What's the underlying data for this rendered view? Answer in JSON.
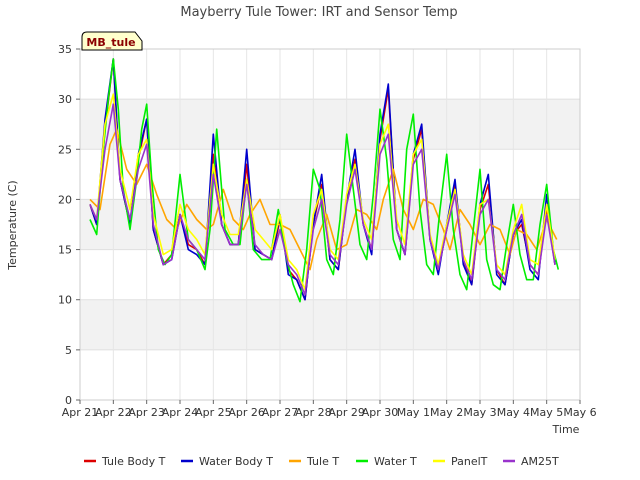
{
  "chart_data": {
    "type": "line",
    "title": "Mayberry Tule Tower: IRT and Sensor Temp",
    "station_label": "MB_tule",
    "xlabel": "Time",
    "ylabel": "Temperature (C)",
    "xlim": [
      0,
      15
    ],
    "ylim": [
      0,
      35
    ],
    "x_tick_values": [
      0,
      1,
      2,
      3,
      4,
      5,
      6,
      7,
      8,
      9,
      10,
      11,
      12,
      13,
      14,
      15
    ],
    "x_tick_labels": [
      "Apr 21",
      "Apr 22",
      "Apr 23",
      "Apr 24",
      "Apr 25",
      "Apr 26",
      "Apr 27",
      "Apr 28",
      "Apr 29",
      "Apr 30",
      "May 1",
      "May 2",
      "May 3",
      "May 4",
      "May 5",
      "May 6"
    ],
    "y_ticks": [
      0,
      5,
      10,
      15,
      20,
      25,
      30,
      35
    ],
    "grid": true,
    "x_units": "days since Apr 21",
    "series": [
      {
        "name": "Tule Body T",
        "color": "#dd0000",
        "x": [
          0.3,
          0.5,
          0.75,
          1.0,
          1.2,
          1.5,
          1.75,
          2.0,
          2.2,
          2.5,
          2.75,
          3.0,
          3.25,
          3.5,
          3.75,
          4.0,
          4.25,
          4.5,
          4.75,
          5.0,
          5.25,
          5.5,
          5.75,
          6.0,
          6.25,
          6.5,
          6.75,
          7.0,
          7.25,
          7.5,
          7.75,
          8.0,
          8.25,
          8.5,
          8.75,
          9.0,
          9.25,
          9.5,
          9.75,
          10.0,
          10.25,
          10.5,
          10.75,
          11.0,
          11.25,
          11.5,
          11.75,
          12.0,
          12.25,
          12.5,
          12.75,
          13.0,
          13.25,
          13.5,
          13.75,
          14.0,
          14.25
        ],
        "y": [
          19.5,
          17.5,
          27.0,
          34.0,
          22.0,
          17.5,
          24.0,
          28.0,
          17.0,
          13.5,
          14.5,
          18.5,
          15.5,
          15.0,
          13.5,
          24.5,
          17.5,
          15.5,
          15.5,
          23.5,
          15.0,
          14.5,
          14.0,
          18.0,
          13.0,
          12.0,
          10.0,
          17.5,
          21.5,
          14.0,
          13.0,
          20.0,
          24.0,
          17.5,
          15.0,
          26.0,
          31.0,
          17.0,
          14.5,
          24.0,
          27.0,
          16.0,
          13.0,
          17.0,
          21.5,
          14.0,
          11.5,
          19.0,
          21.5,
          13.0,
          11.5,
          16.5,
          17.5,
          13.5,
          12.5,
          19.0,
          13.5
        ]
      },
      {
        "name": "Water Body T",
        "color": "#0000cc",
        "x": [
          0.3,
          0.5,
          0.75,
          1.0,
          1.2,
          1.5,
          1.75,
          2.0,
          2.2,
          2.5,
          2.75,
          3.0,
          3.25,
          3.5,
          3.75,
          4.0,
          4.25,
          4.5,
          4.75,
          5.0,
          5.25,
          5.5,
          5.75,
          6.0,
          6.25,
          6.5,
          6.75,
          7.0,
          7.25,
          7.5,
          7.75,
          8.0,
          8.25,
          8.5,
          8.75,
          9.0,
          9.25,
          9.5,
          9.75,
          10.0,
          10.25,
          10.5,
          10.75,
          11.0,
          11.25,
          11.5,
          11.75,
          12.0,
          12.25,
          12.5,
          12.75,
          13.0,
          13.25,
          13.5,
          13.75,
          14.0,
          14.25
        ],
        "y": [
          19.5,
          17.5,
          28.0,
          34.0,
          22.0,
          17.5,
          24.5,
          28.0,
          17.0,
          13.5,
          14.0,
          18.5,
          15.0,
          14.5,
          13.5,
          26.5,
          17.5,
          15.5,
          15.5,
          25.0,
          15.0,
          14.5,
          14.0,
          18.5,
          12.5,
          12.0,
          10.0,
          17.5,
          22.5,
          14.0,
          13.0,
          20.0,
          25.0,
          17.5,
          14.5,
          26.5,
          31.5,
          17.0,
          14.5,
          24.5,
          27.5,
          16.0,
          12.5,
          17.5,
          22.0,
          13.5,
          11.5,
          19.5,
          22.5,
          12.5,
          11.5,
          16.5,
          18.0,
          13.0,
          12.0,
          20.5,
          13.5
        ]
      },
      {
        "name": "Tule T",
        "color": "#ffa500",
        "x": [
          0.3,
          0.6,
          0.9,
          1.1,
          1.4,
          1.7,
          2.0,
          2.3,
          2.6,
          2.9,
          3.2,
          3.5,
          3.8,
          4.0,
          4.3,
          4.6,
          4.9,
          5.1,
          5.4,
          5.7,
          6.0,
          6.3,
          6.6,
          6.9,
          7.1,
          7.4,
          7.7,
          8.0,
          8.3,
          8.6,
          8.9,
          9.1,
          9.4,
          9.7,
          10.0,
          10.3,
          10.6,
          10.9,
          11.1,
          11.4,
          11.7,
          12.0,
          12.3,
          12.6,
          12.9,
          13.1,
          13.4,
          13.7,
          14.0,
          14.3
        ],
        "y": [
          20.0,
          19.0,
          25.5,
          27.0,
          23.0,
          21.5,
          23.5,
          20.5,
          18.0,
          17.0,
          19.5,
          18.0,
          17.0,
          17.5,
          21.0,
          18.0,
          17.0,
          18.5,
          20.0,
          17.5,
          17.5,
          17.0,
          15.0,
          13.0,
          16.0,
          18.5,
          15.0,
          15.5,
          19.0,
          18.5,
          17.0,
          20.0,
          23.0,
          19.0,
          17.0,
          20.0,
          19.5,
          17.0,
          15.0,
          19.0,
          17.5,
          15.5,
          17.5,
          17.0,
          14.5,
          17.0,
          16.5,
          15.0,
          18.0,
          16.0
        ]
      },
      {
        "name": "Water T",
        "color": "#00ee00",
        "x": [
          0.3,
          0.5,
          0.7,
          0.85,
          1.0,
          1.15,
          1.3,
          1.5,
          1.7,
          1.85,
          2.0,
          2.15,
          2.35,
          2.55,
          2.75,
          3.0,
          3.25,
          3.5,
          3.75,
          3.9,
          4.1,
          4.35,
          4.6,
          4.8,
          5.0,
          5.2,
          5.45,
          5.7,
          5.95,
          6.2,
          6.4,
          6.6,
          6.8,
          7.0,
          7.2,
          7.4,
          7.6,
          7.8,
          8.0,
          8.2,
          8.4,
          8.6,
          8.8,
          9.0,
          9.2,
          9.4,
          9.6,
          9.8,
          10.0,
          10.2,
          10.4,
          10.6,
          10.8,
          11.0,
          11.2,
          11.4,
          11.6,
          11.8,
          12.0,
          12.2,
          12.4,
          12.6,
          12.8,
          13.0,
          13.2,
          13.4,
          13.6,
          13.8,
          14.0,
          14.2,
          14.35
        ],
        "y": [
          18.0,
          16.5,
          25.0,
          30.0,
          34.0,
          29.0,
          21.0,
          17.0,
          22.0,
          27.0,
          29.5,
          22.0,
          15.0,
          13.5,
          14.5,
          22.5,
          16.0,
          15.0,
          13.0,
          17.0,
          27.0,
          17.0,
          15.5,
          15.5,
          22.0,
          15.0,
          14.0,
          14.0,
          19.0,
          14.0,
          11.5,
          9.8,
          15.0,
          23.0,
          21.0,
          14.0,
          12.5,
          18.0,
          26.5,
          21.0,
          15.5,
          14.0,
          20.5,
          29.0,
          24.0,
          16.0,
          14.0,
          25.0,
          28.5,
          19.0,
          13.5,
          12.5,
          19.0,
          24.5,
          17.0,
          12.5,
          11.0,
          17.0,
          23.0,
          14.0,
          11.5,
          11.0,
          15.5,
          19.5,
          14.5,
          12.0,
          12.0,
          17.5,
          21.5,
          15.0,
          13.0
        ]
      },
      {
        "name": "PanelT",
        "color": "#ffff00",
        "x": [
          0.3,
          0.5,
          0.75,
          1.0,
          1.2,
          1.5,
          1.75,
          2.0,
          2.2,
          2.5,
          2.75,
          3.0,
          3.25,
          3.5,
          3.75,
          4.0,
          4.25,
          4.5,
          4.75,
          5.0,
          5.25,
          5.5,
          5.75,
          6.0,
          6.25,
          6.5,
          6.75,
          7.0,
          7.25,
          7.5,
          7.75,
          8.0,
          8.25,
          8.5,
          8.75,
          9.0,
          9.25,
          9.5,
          9.75,
          10.0,
          10.25,
          10.5,
          10.75,
          11.0,
          11.25,
          11.5,
          11.75,
          12.0,
          12.25,
          12.5,
          12.75,
          13.0,
          13.25,
          13.5,
          13.75,
          14.0,
          14.25
        ],
        "y": [
          19.5,
          18.0,
          27.5,
          30.5,
          23.0,
          19.0,
          24.5,
          26.0,
          18.5,
          14.5,
          15.0,
          19.5,
          17.0,
          16.0,
          14.5,
          23.5,
          18.5,
          16.5,
          16.5,
          22.0,
          17.0,
          16.0,
          15.0,
          18.5,
          14.0,
          13.0,
          11.0,
          18.5,
          21.0,
          15.0,
          14.0,
          20.5,
          23.5,
          18.0,
          16.0,
          25.5,
          27.5,
          18.0,
          15.5,
          24.5,
          26.0,
          16.5,
          13.5,
          17.5,
          21.0,
          14.5,
          12.5,
          19.5,
          20.0,
          13.5,
          12.5,
          17.0,
          19.5,
          14.0,
          13.5,
          19.5,
          14.0
        ]
      },
      {
        "name": "AM25T",
        "color": "#9933cc",
        "x": [
          0.3,
          0.5,
          0.75,
          1.0,
          1.2,
          1.5,
          1.75,
          2.0,
          2.2,
          2.5,
          2.75,
          3.0,
          3.25,
          3.5,
          3.75,
          4.0,
          4.25,
          4.5,
          4.75,
          5.0,
          5.25,
          5.5,
          5.75,
          6.0,
          6.25,
          6.5,
          6.75,
          7.0,
          7.25,
          7.5,
          7.75,
          8.0,
          8.25,
          8.5,
          8.75,
          9.0,
          9.25,
          9.5,
          9.75,
          10.0,
          10.25,
          10.5,
          10.75,
          11.0,
          11.25,
          11.5,
          11.75,
          12.0,
          12.25,
          12.5,
          12.75,
          13.0,
          13.25,
          13.5,
          13.75,
          14.0,
          14.25
        ],
        "y": [
          19.5,
          18.0,
          25.0,
          29.5,
          22.0,
          18.0,
          23.0,
          25.5,
          17.5,
          13.5,
          14.0,
          18.5,
          16.0,
          15.0,
          14.0,
          22.5,
          17.5,
          15.5,
          15.5,
          21.5,
          15.5,
          14.5,
          14.0,
          17.0,
          13.5,
          12.5,
          10.5,
          17.0,
          20.0,
          14.5,
          13.5,
          19.5,
          23.0,
          17.5,
          15.0,
          24.5,
          26.5,
          17.0,
          14.5,
          23.5,
          25.0,
          16.0,
          13.0,
          17.0,
          20.5,
          14.0,
          12.0,
          18.5,
          20.0,
          13.0,
          12.0,
          16.5,
          18.5,
          13.5,
          12.5,
          18.5,
          13.5
        ]
      }
    ]
  }
}
